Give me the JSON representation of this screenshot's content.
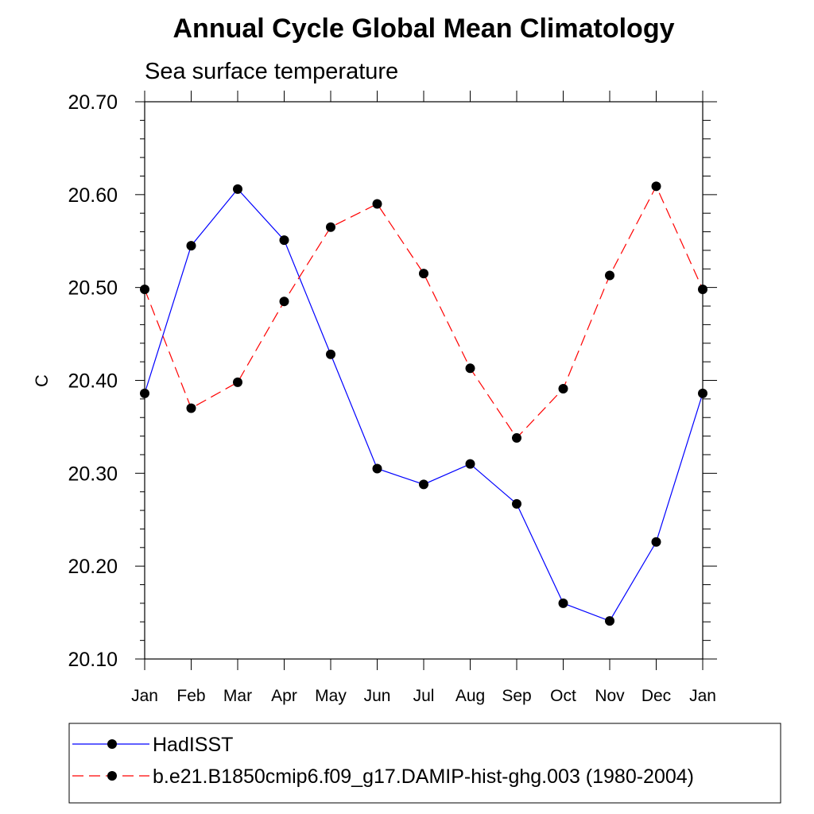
{
  "chart_data": {
    "type": "line",
    "title": "Annual Cycle Global Mean Climatology",
    "subtitle": "Sea surface temperature",
    "xlabel": "",
    "ylabel": "C",
    "categories": [
      "Jan",
      "Feb",
      "Mar",
      "Apr",
      "May",
      "Jun",
      "Jul",
      "Aug",
      "Sep",
      "Oct",
      "Nov",
      "Dec",
      "Jan"
    ],
    "ylim": [
      20.1,
      20.7
    ],
    "yticks": [
      "20.10",
      "20.20",
      "20.30",
      "20.40",
      "20.50",
      "20.60",
      "20.70"
    ],
    "series": [
      {
        "name": "HadISST",
        "color": "#0000ff",
        "dash": "solid",
        "values": [
          20.386,
          20.545,
          20.606,
          20.551,
          20.428,
          20.305,
          20.288,
          20.31,
          20.267,
          20.16,
          20.141,
          20.226,
          20.386
        ]
      },
      {
        "name": "b.e21.B1850cmip6.f09_g17.DAMIP-hist-ghg.003 (1980-2004)",
        "color": "#ff0000",
        "dash": "dashed",
        "values": [
          20.498,
          20.37,
          20.398,
          20.485,
          20.565,
          20.59,
          20.515,
          20.413,
          20.338,
          20.391,
          20.513,
          20.609,
          20.498
        ]
      }
    ],
    "legend_position": "bottom"
  }
}
